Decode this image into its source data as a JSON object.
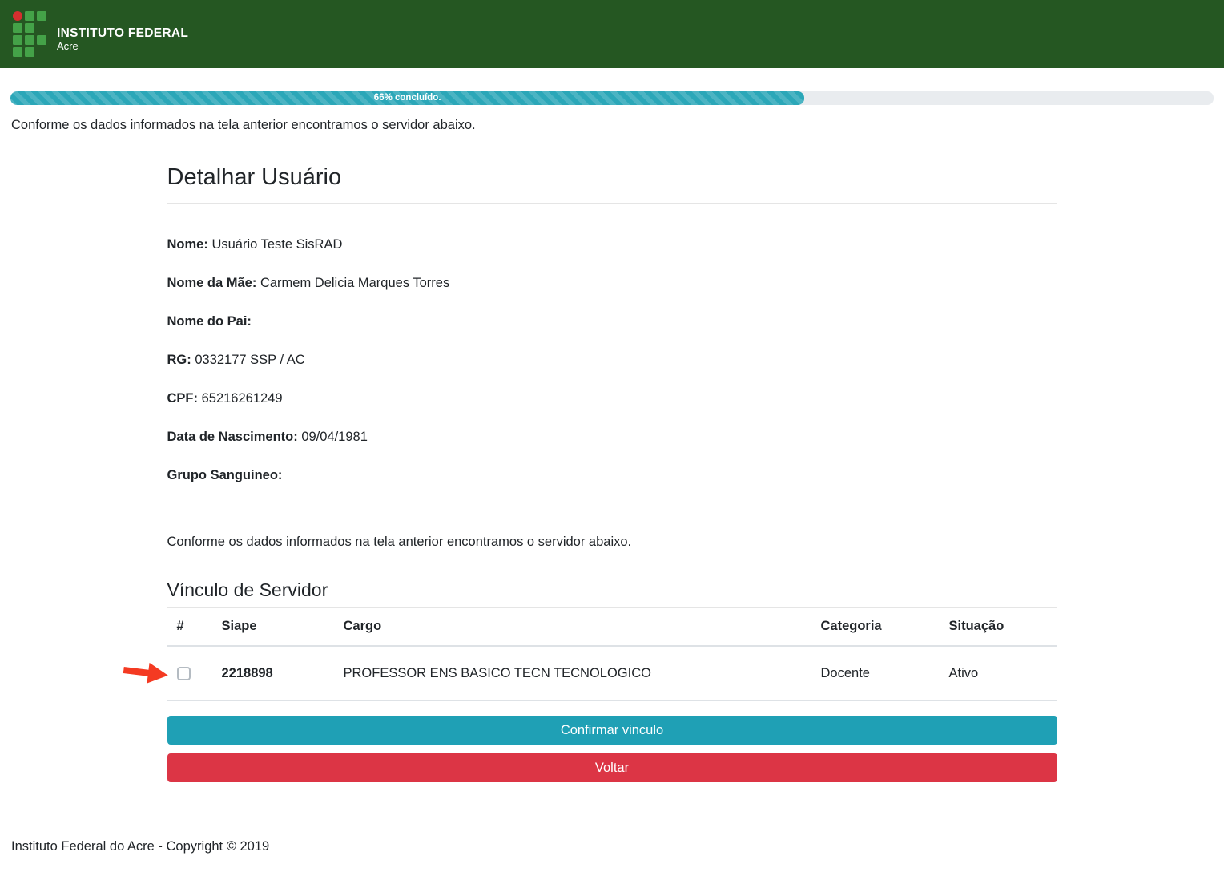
{
  "header": {
    "brand_title": "INSTITUTO FEDERAL",
    "brand_subtitle": "Acre",
    "colors": {
      "background": "#255722",
      "logo_square": "#44a248",
      "logo_circle": "#d62f2f"
    }
  },
  "progress": {
    "percent": 66,
    "label": "66% concluído.",
    "fill_color": "#2ba7b8",
    "track_color": "#e9ecef"
  },
  "intro_text": "Conforme os dados informados na tela anterior encontramos o servidor abaixo.",
  "user_details": {
    "title": "Detalhar Usuário",
    "fields": [
      {
        "label": "Nome:",
        "value": "Usuário Teste SisRAD"
      },
      {
        "label": "Nome da Mãe:",
        "value": "Carmem Delicia Marques Torres"
      },
      {
        "label": "Nome do Pai:",
        "value": ""
      },
      {
        "label": "RG:",
        "value": "0332177 SSP / AC"
      },
      {
        "label": "CPF:",
        "value": "65216261249"
      },
      {
        "label": "Data de Nascimento:",
        "value": "09/04/1981"
      },
      {
        "label": "Grupo Sanguíneo:",
        "value": ""
      }
    ]
  },
  "servidor_section": {
    "intro_text": "Conforme os dados informados na tela anterior encontramos o servidor abaixo.",
    "title": "Vínculo de Servidor",
    "table": {
      "headers": [
        "#",
        "Siape",
        "Cargo",
        "Categoria",
        "Situação"
      ],
      "rows": [
        {
          "selected": false,
          "siape": "2218898",
          "cargo": "PROFESSOR ENS BASICO TECN TECNOLOGICO",
          "categoria": "Docente",
          "situacao": "Ativo"
        }
      ]
    },
    "buttons": {
      "confirm_label": "Confirmar vinculo",
      "confirm_color": "#1fa0b5",
      "back_label": "Voltar",
      "back_color": "#dc3545"
    },
    "annotation": {
      "arrow_color": "#f43a22"
    }
  },
  "footer": {
    "text": "Instituto Federal do Acre - Copyright © 2019"
  }
}
